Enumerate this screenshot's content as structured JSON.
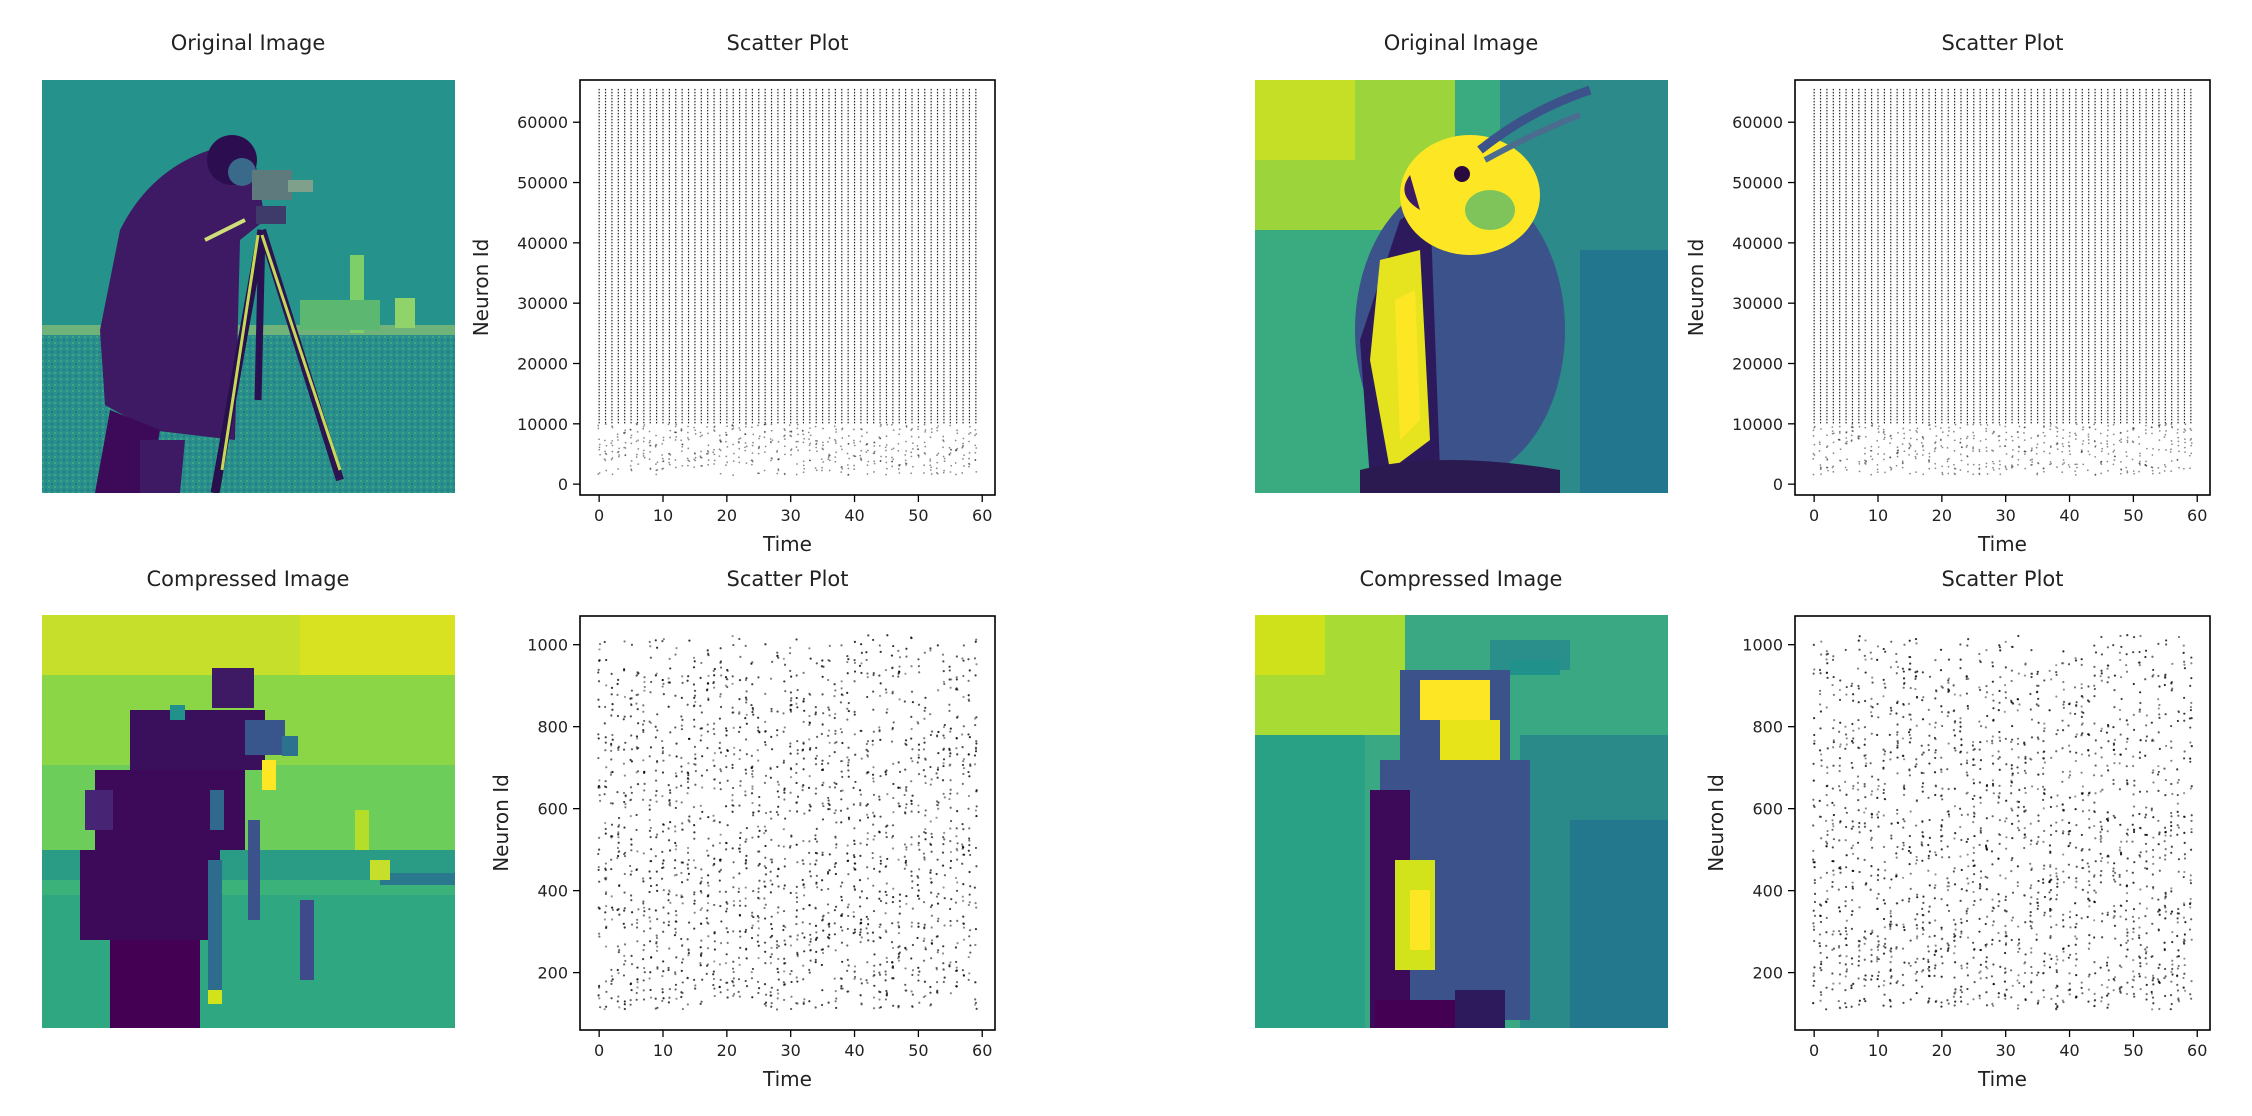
{
  "figure": {
    "panels": [
      {
        "original_title": "Original Image",
        "compressed_title": "Compressed Image",
        "original_icon": "cameraman-photo",
        "compressed_icon": "cameraman-pixelated"
      },
      {
        "original_title": "Original Image",
        "compressed_title": "Compressed Image",
        "original_icon": "cockatiel-photo",
        "compressed_icon": "cockatiel-pixelated"
      }
    ],
    "colormap": [
      "#440154",
      "#3b528b",
      "#21918c",
      "#5ec962",
      "#fde725"
    ]
  },
  "chart_data": [
    {
      "type": "scatter",
      "title": "Scatter Plot",
      "xlabel": "Time",
      "ylabel": "Neuron Id",
      "xlim": [
        -3,
        62
      ],
      "ylim": [
        -1800,
        67000
      ],
      "xticks": [
        0,
        10,
        20,
        30,
        40,
        50,
        60
      ],
      "yticks": [
        0,
        10000,
        20000,
        30000,
        40000,
        50000,
        60000
      ],
      "x_range": [
        0,
        59
      ],
      "y_range": [
        0,
        65535
      ],
      "dense_from": 10000,
      "marker_color": "#000000"
    },
    {
      "type": "scatter",
      "title": "Scatter Plot",
      "xlabel": "Time",
      "ylabel": "Neuron Id",
      "xlim": [
        -3,
        62
      ],
      "ylim": [
        60,
        1070
      ],
      "xticks": [
        0,
        10,
        20,
        30,
        40,
        50,
        60
      ],
      "yticks": [
        200,
        400,
        600,
        800,
        1000
      ],
      "x_range": [
        0,
        59
      ],
      "y_range": [
        110,
        1024
      ],
      "marker_color": "#000000"
    },
    {
      "type": "scatter",
      "title": "Scatter Plot",
      "xlabel": "Time",
      "ylabel": "Neuron Id",
      "xlim": [
        -3,
        62
      ],
      "ylim": [
        -1800,
        67000
      ],
      "xticks": [
        0,
        10,
        20,
        30,
        40,
        50,
        60
      ],
      "yticks": [
        0,
        10000,
        20000,
        30000,
        40000,
        50000,
        60000
      ],
      "x_range": [
        0,
        59
      ],
      "y_range": [
        0,
        65535
      ],
      "dense_from": 10000,
      "marker_color": "#000000"
    },
    {
      "type": "scatter",
      "title": "Scatter Plot",
      "xlabel": "Time",
      "ylabel": "Neuron Id",
      "xlim": [
        -3,
        62
      ],
      "ylim": [
        60,
        1070
      ],
      "xticks": [
        0,
        10,
        20,
        30,
        40,
        50,
        60
      ],
      "yticks": [
        200,
        400,
        600,
        800,
        1000
      ],
      "x_range": [
        0,
        59
      ],
      "y_range": [
        110,
        1024
      ],
      "marker_color": "#000000"
    }
  ]
}
